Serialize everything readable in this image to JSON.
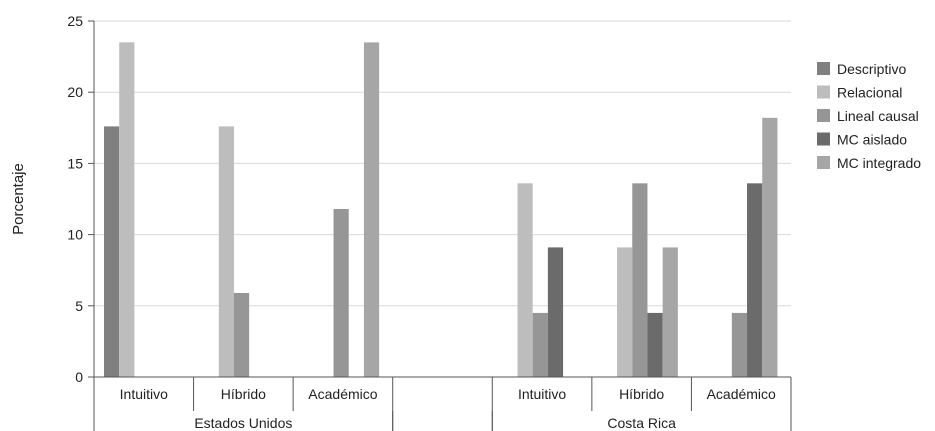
{
  "chart_data": {
    "type": "bar",
    "title": "",
    "xlabel": "",
    "ylabel": "Porcentaje",
    "ylim": [
      0,
      25
    ],
    "yticks": [
      0,
      5,
      10,
      15,
      20,
      25
    ],
    "grid": true,
    "legend_position": "right",
    "groups": [
      {
        "name": "Estados Unidos",
        "categories": [
          "Intuitivo",
          "Híbrido",
          "Académico"
        ]
      },
      {
        "name": "",
        "categories": [
          ""
        ]
      },
      {
        "name": "Costa Rica",
        "categories": [
          "Intuitivo",
          "Híbrido",
          "Académico"
        ]
      }
    ],
    "series": [
      {
        "name": "Descriptivo",
        "color": "#808080",
        "values": [
          17.6,
          0,
          0,
          null,
          0,
          0,
          0
        ]
      },
      {
        "name": "Relacional",
        "color": "#bdbdbd",
        "values": [
          23.5,
          17.6,
          0,
          null,
          13.6,
          9.1,
          0
        ]
      },
      {
        "name": "Lineal causal",
        "color": "#969696",
        "values": [
          0,
          5.9,
          11.8,
          null,
          4.5,
          13.6,
          4.5
        ]
      },
      {
        "name": "MC aislado",
        "color": "#6b6b6b",
        "values": [
          0,
          0,
          0,
          null,
          9.1,
          4.5,
          13.6
        ]
      },
      {
        "name": "MC integrado",
        "color": "#a6a6a6",
        "values": [
          0,
          0,
          23.5,
          null,
          0,
          9.1,
          18.2
        ]
      }
    ]
  }
}
